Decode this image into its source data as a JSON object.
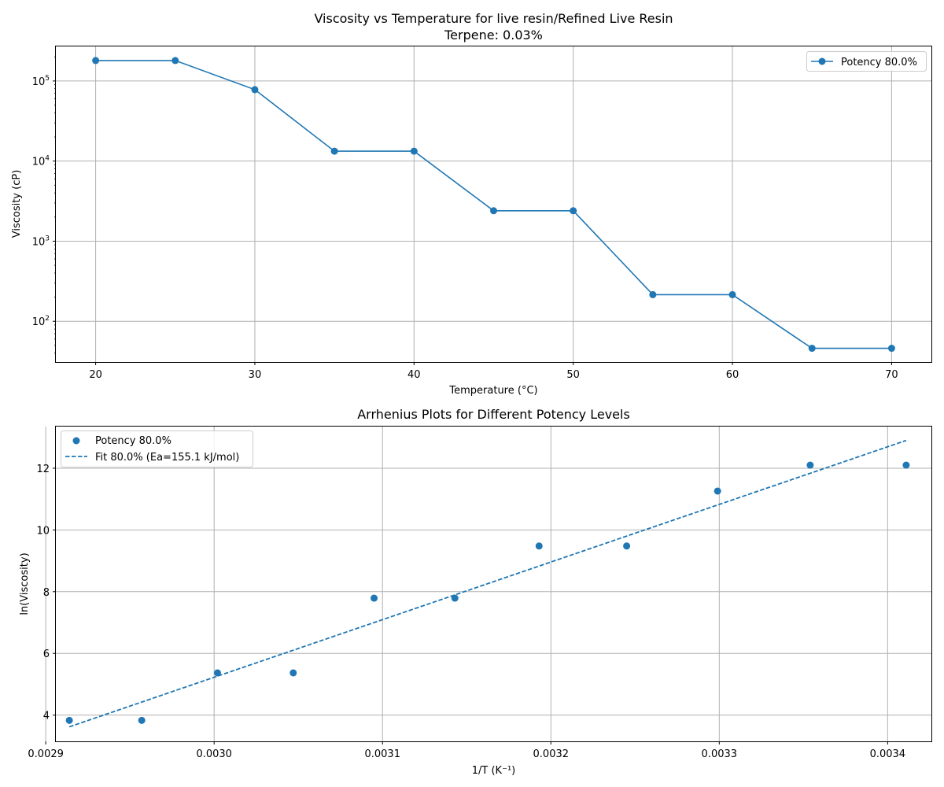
{
  "colors": {
    "series": "#1f77b4",
    "grid": "#b0b0b0",
    "axis": "#000000"
  },
  "chart_data": [
    {
      "type": "line",
      "title_line1": "Viscosity vs Temperature for live resin/Refined Live Resin",
      "title_line2": "Terpene: 0.03%",
      "xlabel": "Temperature (°C)",
      "ylabel": "Viscosity (cP)",
      "xlim": [
        17.5,
        72.5
      ],
      "ylim": [
        31,
        270000
      ],
      "yscale": "log",
      "grid": true,
      "legend_position": "top-right",
      "x_ticks": [
        20,
        30,
        40,
        50,
        60,
        70
      ],
      "x_tick_labels": [
        "20",
        "30",
        "40",
        "50",
        "60",
        "70"
      ],
      "y_ticks": [
        {
          "value": 100,
          "base": "10",
          "exp": "2"
        },
        {
          "value": 1000,
          "base": "10",
          "exp": "3"
        },
        {
          "value": 10000,
          "base": "10",
          "exp": "4"
        },
        {
          "value": 100000,
          "base": "10",
          "exp": "5"
        }
      ],
      "series": [
        {
          "name": "Potency 80.0%",
          "marker": "circle",
          "x": [
            20,
            25,
            30,
            35,
            40,
            45,
            50,
            55,
            60,
            65,
            70
          ],
          "y": [
            180000,
            180000,
            78000,
            13300,
            13300,
            2400,
            2400,
            215,
            215,
            46,
            46
          ]
        }
      ]
    },
    {
      "type": "scatter",
      "title": "Arrhenius Plots for Different Potency Levels",
      "xlabel": "1/T (K⁻¹)",
      "ylabel": "ln(Viscosity)",
      "xlim": [
        0.002906,
        0.003426
      ],
      "ylim": [
        3.15,
        13.35
      ],
      "grid": true,
      "legend_position": "top-left",
      "x_ticks": [
        0.0029,
        0.003,
        0.0031,
        0.0032,
        0.0033,
        0.0034
      ],
      "x_tick_labels": [
        "0.0029",
        "0.0030",
        "0.0031",
        "0.0032",
        "0.0033",
        "0.0034"
      ],
      "y_ticks": [
        4,
        6,
        8,
        10,
        12
      ],
      "y_tick_labels": [
        "4",
        "6",
        "8",
        "10",
        "12"
      ],
      "series": [
        {
          "name": "Potency 80.0%",
          "kind": "scatter",
          "x": [
            0.002914,
            0.002957,
            0.003002,
            0.003047,
            0.003095,
            0.003143,
            0.003193,
            0.003245,
            0.003299,
            0.003354,
            0.003411
          ],
          "y": [
            3.83,
            3.83,
            5.37,
            5.37,
            7.79,
            7.79,
            9.48,
            9.48,
            11.26,
            12.1,
            12.1
          ]
        },
        {
          "name": "Fit 80.0% (Ea=155.1 kJ/mol)",
          "kind": "fit-dashed",
          "x": [
            0.002914,
            0.003411
          ],
          "y": [
            3.62,
            12.9
          ]
        }
      ]
    }
  ]
}
